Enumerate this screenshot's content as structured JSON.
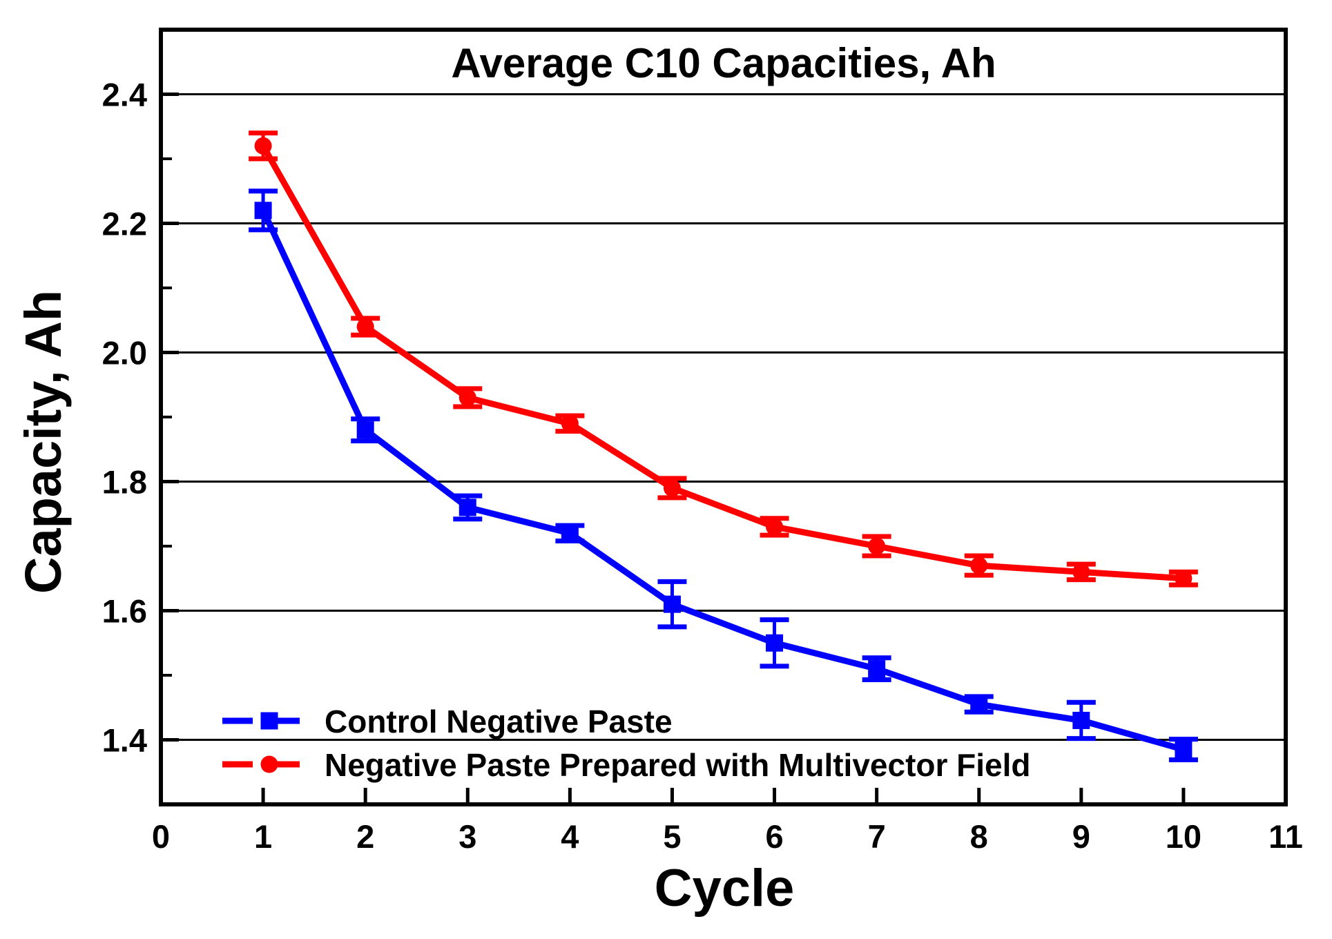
{
  "chart_data": {
    "type": "line",
    "title": "Average C10 Capacities, Ah",
    "xlabel": "Cycle",
    "ylabel": "Capacity, Ah",
    "xlim": [
      0,
      11
    ],
    "ylim": [
      1.3,
      2.5
    ],
    "x_ticks": [
      0,
      1,
      2,
      3,
      4,
      5,
      6,
      7,
      8,
      9,
      10,
      11
    ],
    "y_ticks": [
      1.4,
      1.6,
      1.8,
      2.0,
      2.2,
      2.4
    ],
    "y_minor_ticks": [
      1.5,
      1.7,
      1.9,
      2.1,
      2.3
    ],
    "grid": "horizontal",
    "legend_position": "bottom-left",
    "x": [
      1,
      2,
      3,
      4,
      5,
      6,
      7,
      8,
      9,
      10
    ],
    "series": [
      {
        "name": "Control Negative Paste",
        "color": "#0000ff",
        "marker": "square",
        "values": [
          2.22,
          1.88,
          1.76,
          1.72,
          1.61,
          1.55,
          1.51,
          1.455,
          1.43,
          1.385
        ],
        "errors": [
          0.03,
          0.017,
          0.018,
          0.012,
          0.035,
          0.036,
          0.017,
          0.012,
          0.028,
          0.016
        ]
      },
      {
        "name": "Negative Paste Prepared with Multivector Field",
        "color": "#ff0000",
        "marker": "circle",
        "values": [
          2.32,
          2.04,
          1.93,
          1.89,
          1.79,
          1.73,
          1.7,
          1.67,
          1.66,
          1.65
        ],
        "errors": [
          0.02,
          0.013,
          0.014,
          0.012,
          0.015,
          0.013,
          0.015,
          0.015,
          0.012,
          0.01
        ]
      }
    ],
    "frame_color": "#000000",
    "gridline_color": "#000000"
  }
}
